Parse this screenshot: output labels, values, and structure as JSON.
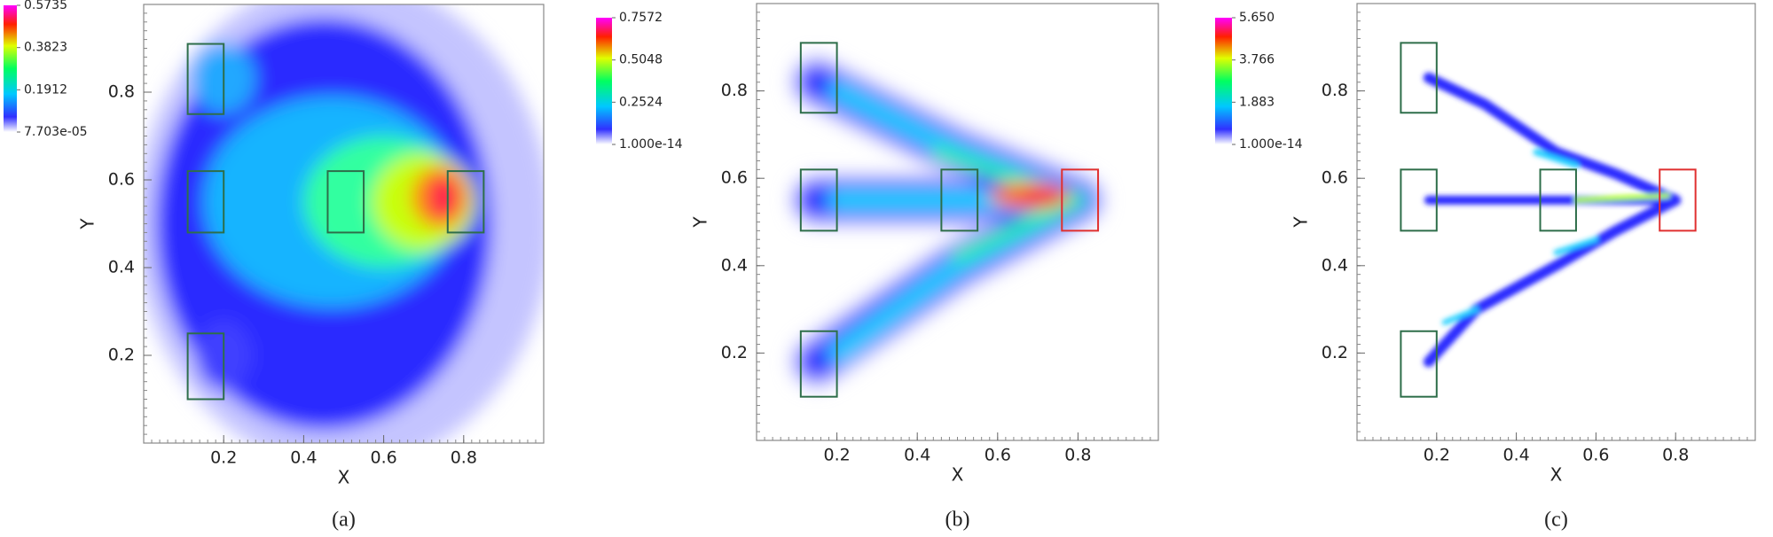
{
  "chart_data": [
    {
      "type": "heatmap",
      "caption": "(a)",
      "xlabel": "X",
      "ylabel": "Y",
      "xlim": [
        0,
        1
      ],
      "ylim": [
        0,
        1
      ],
      "xticks": [
        0.2,
        0.4,
        0.6,
        0.8
      ],
      "yticks": [
        0.2,
        0.4,
        0.6,
        0.8
      ],
      "colorbar": {
        "ticks": [
          {
            "value": 7.703e-05,
            "label": "7.703e-05"
          },
          0.1912,
          0.3823,
          0.5735
        ]
      }
    },
    {
      "type": "heatmap",
      "caption": "(b)",
      "xlabel": "X",
      "ylabel": "Y",
      "xlim": [
        0,
        1
      ],
      "ylim": [
        0,
        1
      ],
      "xticks": [
        0.2,
        0.4,
        0.6,
        0.8
      ],
      "yticks": [
        0.2,
        0.4,
        0.6,
        0.8
      ],
      "colorbar": {
        "ticks": [
          {
            "value": 1e-14,
            "label": "1.000e-14"
          },
          0.2524,
          0.5048,
          0.7572
        ]
      }
    },
    {
      "type": "heatmap",
      "caption": "(c)",
      "xlabel": "X",
      "ylabel": "Y",
      "xlim": [
        0,
        1
      ],
      "ylim": [
        0,
        1
      ],
      "xticks": [
        0.2,
        0.4,
        0.6,
        0.8
      ],
      "yticks": [
        0.2,
        0.4,
        0.6,
        0.8
      ],
      "colorbar": {
        "ticks": [
          {
            "value": 1e-14,
            "label": "1.000e-14"
          },
          1.883,
          3.766,
          {
            "value": 5.65,
            "label": "5.650"
          }
        ]
      }
    }
  ]
}
